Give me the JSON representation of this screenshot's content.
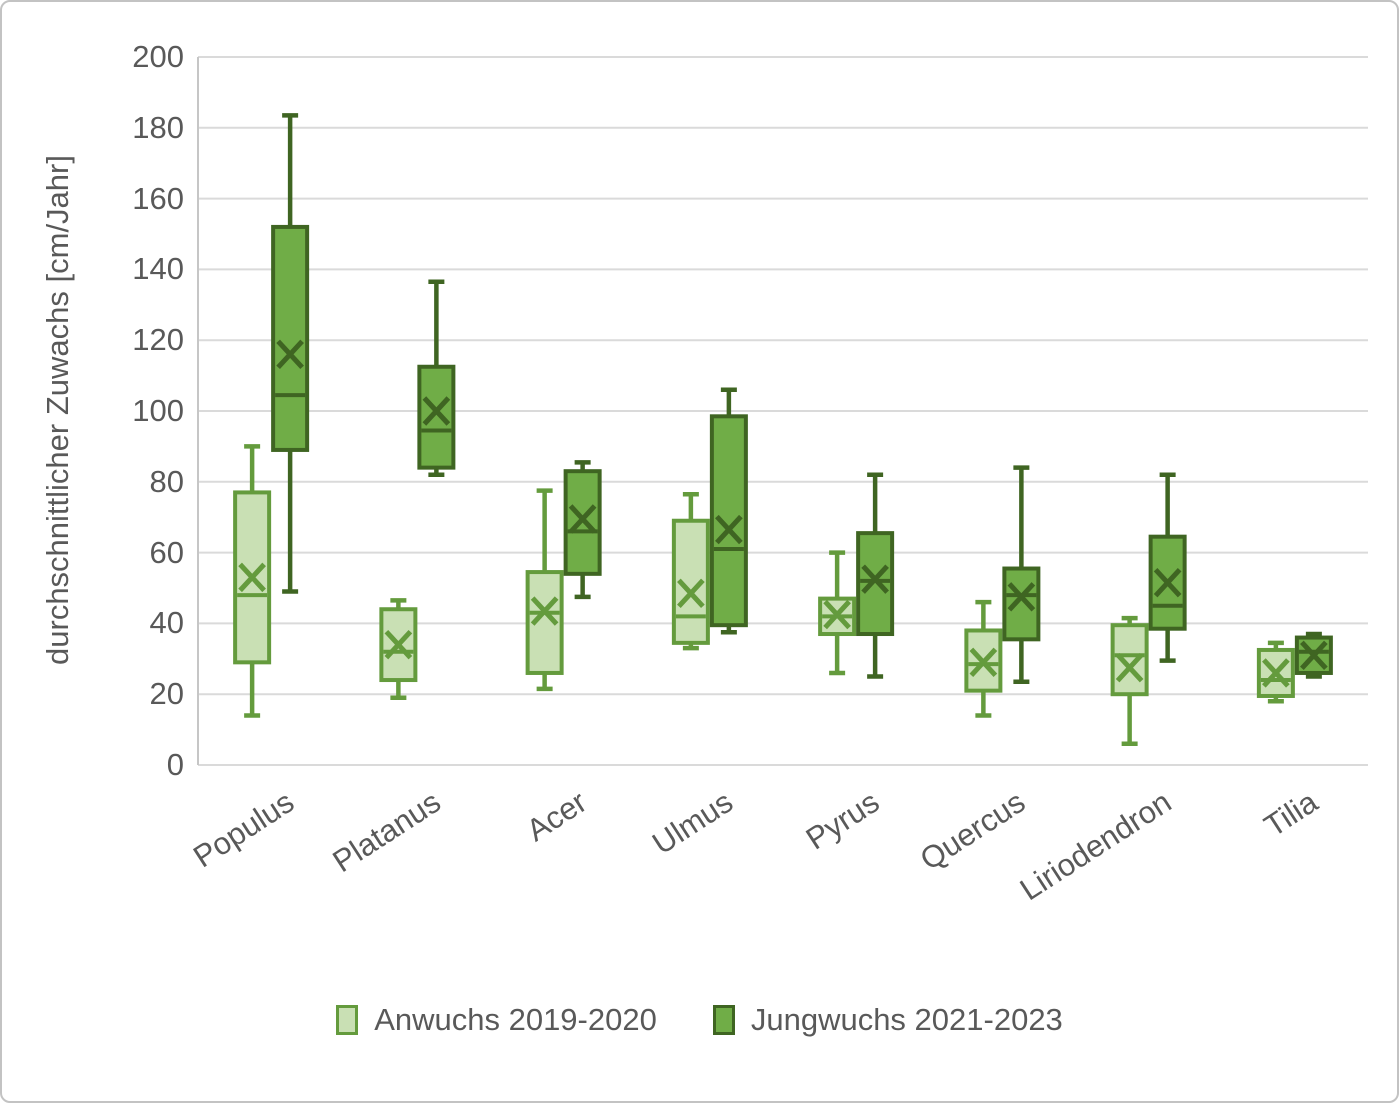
{
  "chart_data": {
    "type": "boxplot",
    "title": "",
    "ylabel": "durchschnittlicher Zuwachs [cm/Jahr]",
    "xlabel": "",
    "ylim": [
      0,
      200
    ],
    "ytick_step": 20,
    "y_ticks": [
      "0",
      "20",
      "40",
      "60",
      "80",
      "100",
      "120",
      "140",
      "160",
      "180",
      "200"
    ],
    "grid": true,
    "legend_position": "bottom",
    "categories": [
      "Populus",
      "Platanus",
      "Acer",
      "Ulmus",
      "Pyrus",
      "Quercus",
      "Liriodendron",
      "Tilia"
    ],
    "series": [
      {
        "name": "Anwuchs 2019-2020",
        "fill": "#c9e0b4",
        "stroke": "#649b3d",
        "boxes": [
          {
            "min": 14,
            "q1": 29,
            "median": 48,
            "mean": 53,
            "q3": 77,
            "max": 90
          },
          {
            "min": 19,
            "q1": 24,
            "median": 32,
            "mean": 34,
            "q3": 44,
            "max": 46.5
          },
          {
            "min": 21.5,
            "q1": 26,
            "median": 43,
            "mean": 43.5,
            "q3": 54.5,
            "max": 77.5
          },
          {
            "min": 33,
            "q1": 34.5,
            "median": 42,
            "mean": 48.5,
            "q3": 69,
            "max": 76.5
          },
          {
            "min": 26,
            "q1": 37,
            "median": 42,
            "mean": 42.5,
            "q3": 47,
            "max": 60
          },
          {
            "min": 14,
            "q1": 21,
            "median": 28.5,
            "mean": 29,
            "q3": 38,
            "max": 46
          },
          {
            "min": 6,
            "q1": 20,
            "median": 31,
            "mean": 27.5,
            "q3": 39.5,
            "max": 41.5
          },
          {
            "min": 18,
            "q1": 19.5,
            "median": 24,
            "mean": 26,
            "q3": 32.5,
            "max": 34.5
          }
        ]
      },
      {
        "name": "Jungwuchs 2021-2023",
        "fill": "#70ad47",
        "stroke": "#3f6522",
        "boxes": [
          {
            "min": 49,
            "q1": 89,
            "median": 104.5,
            "mean": 116,
            "q3": 152,
            "max": 183.5
          },
          {
            "min": 82,
            "q1": 84,
            "median": 94.5,
            "mean": 100,
            "q3": 112.5,
            "max": 136.5
          },
          {
            "min": 47.5,
            "q1": 54,
            "median": 66,
            "mean": 69.5,
            "q3": 83,
            "max": 85.5
          },
          {
            "min": 37.5,
            "q1": 39.5,
            "median": 61,
            "mean": 66.5,
            "q3": 98.5,
            "max": 106
          },
          {
            "min": 25,
            "q1": 37,
            "median": 52,
            "mean": 52.5,
            "q3": 65.5,
            "max": 82
          },
          {
            "min": 23.5,
            "q1": 35.5,
            "median": 48,
            "mean": 47.5,
            "q3": 55.5,
            "max": 84
          },
          {
            "min": 29.5,
            "q1": 38.5,
            "median": 45,
            "mean": 51.5,
            "q3": 64.5,
            "max": 82
          },
          {
            "min": 25,
            "q1": 26,
            "median": 32,
            "mean": 31,
            "q3": 36,
            "max": 37
          }
        ]
      }
    ],
    "colors": {
      "gridline": "#dadada",
      "axis_line": "#c6c6c6",
      "text": "#595959",
      "background": "#ffffff"
    }
  }
}
